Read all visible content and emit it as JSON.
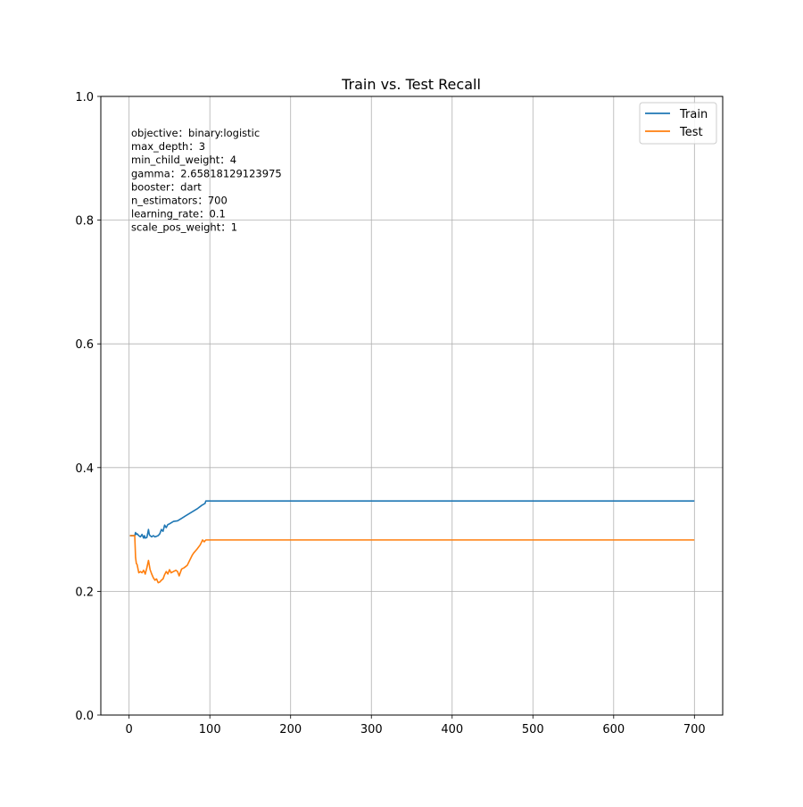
{
  "chart_data": {
    "type": "line",
    "title": "Train vs. Test Recall",
    "xlabel": "",
    "ylabel": "",
    "xlim": [
      -35,
      735
    ],
    "ylim": [
      0,
      1.0
    ],
    "xticks": [
      0,
      100,
      200,
      300,
      400,
      500,
      600,
      700
    ],
    "yticks": [
      0.0,
      0.2,
      0.4,
      0.6,
      0.8,
      1.0
    ],
    "xtick_labels": [
      "0",
      "100",
      "200",
      "300",
      "400",
      "500",
      "600",
      "700"
    ],
    "ytick_labels": [
      "0.0",
      "0.2",
      "0.4",
      "0.6",
      "0.8",
      "1.0"
    ],
    "grid": true,
    "legend_position": "top-right",
    "annotation_lines": [
      "objective：binary:logistic",
      "max_depth：3",
      "min_child_weight：4",
      "gamma：2.65818129123975",
      "booster：dart",
      "n_estimators：700",
      "learning_rate：0.1",
      "scale_pos_weight：1"
    ],
    "series": [
      {
        "name": "Train",
        "color": "#1f77b4",
        "x": [
          1,
          7,
          8,
          9,
          10,
          12,
          14,
          16,
          18,
          19,
          20,
          22,
          24,
          25,
          26,
          28,
          30,
          32,
          34,
          36,
          38,
          40,
          42,
          44,
          46,
          48,
          50,
          55,
          60,
          65,
          70,
          75,
          80,
          85,
          90,
          94,
          95,
          100,
          200,
          300,
          400,
          500,
          600,
          700
        ],
        "y": [
          0.29,
          0.29,
          0.295,
          0.292,
          0.293,
          0.29,
          0.288,
          0.292,
          0.286,
          0.29,
          0.286,
          0.287,
          0.3,
          0.292,
          0.29,
          0.288,
          0.29,
          0.288,
          0.289,
          0.29,
          0.293,
          0.3,
          0.297,
          0.307,
          0.303,
          0.308,
          0.309,
          0.313,
          0.314,
          0.318,
          0.322,
          0.326,
          0.33,
          0.334,
          0.339,
          0.342,
          0.346,
          0.346,
          0.346,
          0.346,
          0.346,
          0.346,
          0.346,
          0.346
        ]
      },
      {
        "name": "Test",
        "color": "#ff7f0e",
        "x": [
          1,
          7,
          8,
          9,
          10,
          12,
          14,
          16,
          18,
          20,
          22,
          24,
          26,
          28,
          30,
          32,
          34,
          36,
          38,
          40,
          42,
          44,
          46,
          48,
          50,
          52,
          55,
          58,
          60,
          62,
          65,
          68,
          70,
          72,
          75,
          78,
          80,
          84,
          88,
          91,
          93,
          95,
          100,
          200,
          300,
          400,
          500,
          600,
          700
        ],
        "y": [
          0.29,
          0.29,
          0.255,
          0.245,
          0.243,
          0.23,
          0.232,
          0.23,
          0.234,
          0.228,
          0.238,
          0.25,
          0.235,
          0.228,
          0.222,
          0.218,
          0.22,
          0.214,
          0.215,
          0.218,
          0.22,
          0.227,
          0.232,
          0.228,
          0.235,
          0.23,
          0.232,
          0.234,
          0.232,
          0.225,
          0.236,
          0.238,
          0.24,
          0.242,
          0.25,
          0.258,
          0.262,
          0.268,
          0.275,
          0.283,
          0.28,
          0.283,
          0.283,
          0.283,
          0.283,
          0.283,
          0.283,
          0.283,
          0.283
        ]
      }
    ]
  }
}
